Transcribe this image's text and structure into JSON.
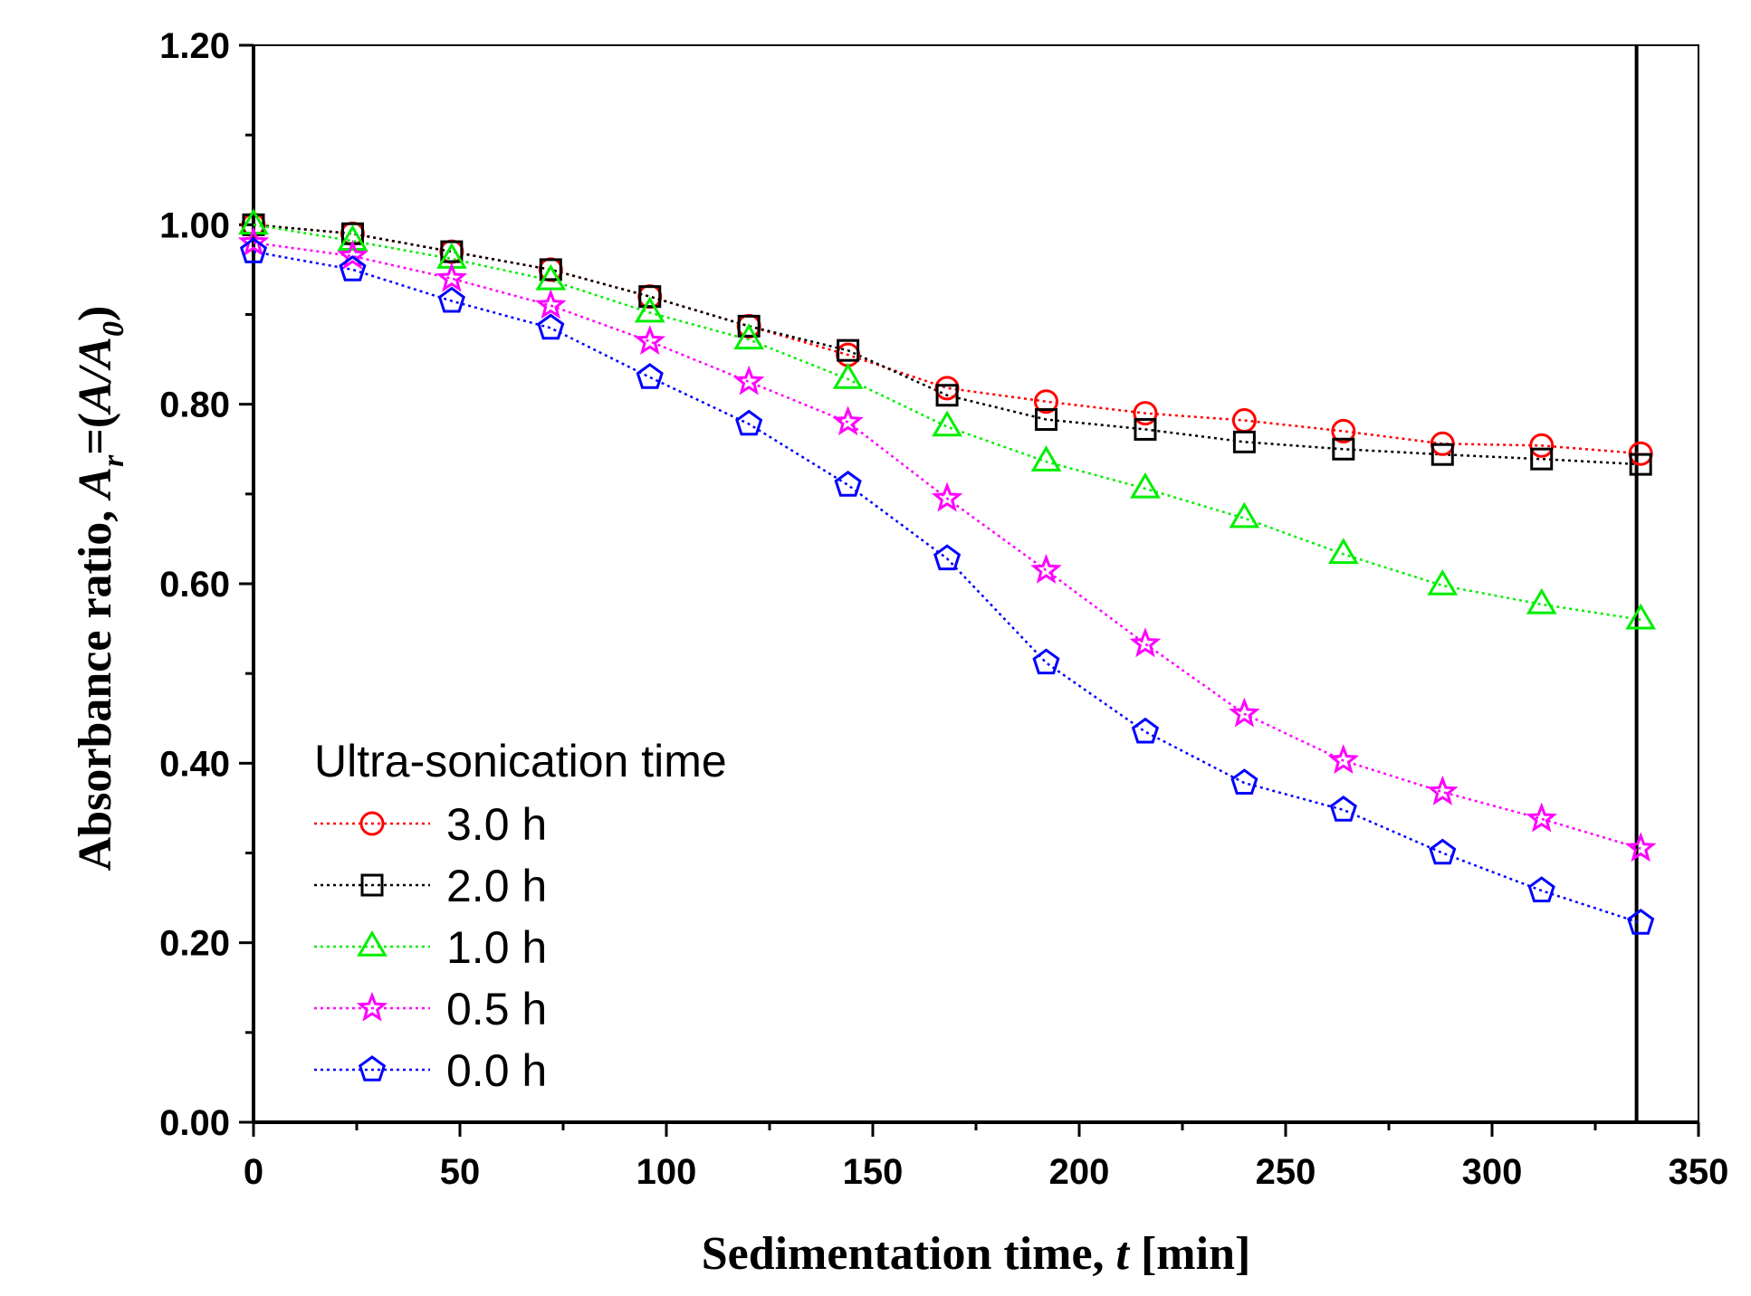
{
  "chart_data": {
    "type": "line",
    "title": "",
    "xlabel": "Sedimentation time, t [min]",
    "xlabel_parts": {
      "pre": "Sedimentation time, ",
      "var": "t",
      "post": " [min]"
    },
    "ylabel": "Absorbance ratio, Ar=(A/A0)",
    "ylabel_parts": {
      "pre": "Absorbance ratio, ",
      "A": "A",
      "r": "r",
      "eq": "=(",
      "A2": "A/A",
      "zero": "0",
      "close": ")"
    },
    "xlim": [
      0,
      350
    ],
    "ylim": [
      0,
      1.2
    ],
    "xticks": [
      0,
      50,
      100,
      150,
      200,
      250,
      300,
      350
    ],
    "xtick_labels": [
      "0",
      "50",
      "100",
      "150",
      "200",
      "250",
      "300",
      "350"
    ],
    "yticks": [
      0,
      0.2,
      0.4,
      0.6,
      0.8,
      1.0,
      1.2
    ],
    "ytick_labels": [
      "0.00",
      "0.20",
      "0.40",
      "0.60",
      "0.80",
      "1.00",
      "1.20"
    ],
    "vertical_line_x": 335,
    "grid": false,
    "legend": {
      "title": "Ultra-sonication time",
      "position": "bottom-left"
    },
    "x": [
      0,
      24,
      48,
      72,
      96,
      120,
      144,
      168,
      192,
      216,
      240,
      264,
      288,
      312,
      336
    ],
    "series": [
      {
        "name": "3.0 h",
        "color": "#ff0000",
        "marker": "circle",
        "values": [
          1.0,
          0.99,
          0.97,
          0.95,
          0.92,
          0.887,
          0.855,
          0.818,
          0.803,
          0.79,
          0.782,
          0.77,
          0.756,
          0.754,
          0.745
        ]
      },
      {
        "name": "2.0 h",
        "color": "#000000",
        "marker": "square",
        "values": [
          1.0,
          0.99,
          0.97,
          0.95,
          0.92,
          0.887,
          0.86,
          0.81,
          0.783,
          0.772,
          0.758,
          0.75,
          0.744,
          0.739,
          0.733
        ]
      },
      {
        "name": "1.0 h",
        "color": "#00ee00",
        "marker": "triangle",
        "values": [
          1.0,
          0.982,
          0.962,
          0.938,
          0.902,
          0.872,
          0.828,
          0.775,
          0.736,
          0.706,
          0.673,
          0.633,
          0.598,
          0.577,
          0.56
        ]
      },
      {
        "name": "0.5 h",
        "color": "#ff00ff",
        "marker": "star",
        "values": [
          0.98,
          0.965,
          0.94,
          0.91,
          0.87,
          0.825,
          0.78,
          0.695,
          0.615,
          0.533,
          0.455,
          0.403,
          0.368,
          0.338,
          0.305
        ]
      },
      {
        "name": "0.0 h",
        "color": "#0000ff",
        "marker": "pentagon",
        "values": [
          0.97,
          0.95,
          0.915,
          0.885,
          0.83,
          0.778,
          0.71,
          0.628,
          0.512,
          0.435,
          0.378,
          0.348,
          0.3,
          0.258,
          0.222
        ]
      }
    ]
  }
}
